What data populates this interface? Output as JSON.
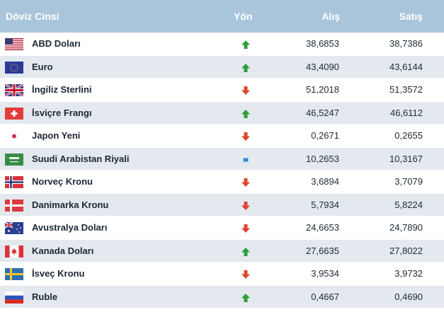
{
  "header": {
    "name": "Döviz Cinsi",
    "direction": "Yön",
    "buy": "Alış",
    "sell": "Satış"
  },
  "colors": {
    "header_bg": "#a9c5db",
    "up": "#2e9d3a",
    "down": "#e0452b",
    "flat": "#2a8fd6",
    "row_alt": "#e3e9ee"
  },
  "rows": [
    {
      "name": "ABD Doları",
      "flag": "us-flag-icon",
      "direction": "up",
      "buy": "38,6853",
      "sell": "38,7386"
    },
    {
      "name": "Euro",
      "flag": "eu-flag-icon",
      "direction": "up",
      "buy": "43,4090",
      "sell": "43,6144"
    },
    {
      "name": "İngiliz Sterlini",
      "flag": "uk-flag-icon",
      "direction": "down",
      "buy": "51,2018",
      "sell": "51,3572"
    },
    {
      "name": "İsviçre Frangı",
      "flag": "ch-flag-icon",
      "direction": "up",
      "buy": "46,5247",
      "sell": "46,6112"
    },
    {
      "name": "Japon Yeni",
      "flag": "jp-flag-icon",
      "direction": "down",
      "buy": "0,2671",
      "sell": "0,2655"
    },
    {
      "name": "Suudi Arabistan Riyali",
      "flag": "sa-flag-icon",
      "direction": "flat",
      "buy": "10,2653",
      "sell": "10,3167"
    },
    {
      "name": "Norveç Kronu",
      "flag": "no-flag-icon",
      "direction": "down",
      "buy": "3,6894",
      "sell": "3,7079"
    },
    {
      "name": "Danimarka Kronu",
      "flag": "dk-flag-icon",
      "direction": "down",
      "buy": "5,7934",
      "sell": "5,8224"
    },
    {
      "name": "Avustralya Doları",
      "flag": "au-flag-icon",
      "direction": "down",
      "buy": "24,6653",
      "sell": "24,7890"
    },
    {
      "name": "Kanada Doları",
      "flag": "ca-flag-icon",
      "direction": "up",
      "buy": "27,6635",
      "sell": "27,8022"
    },
    {
      "name": "İsveç Kronu",
      "flag": "se-flag-icon",
      "direction": "down",
      "buy": "3,9534",
      "sell": "3,9732"
    },
    {
      "name": "Ruble",
      "flag": "ru-flag-icon",
      "direction": "up",
      "buy": "0,4667",
      "sell": "0,4690"
    }
  ]
}
